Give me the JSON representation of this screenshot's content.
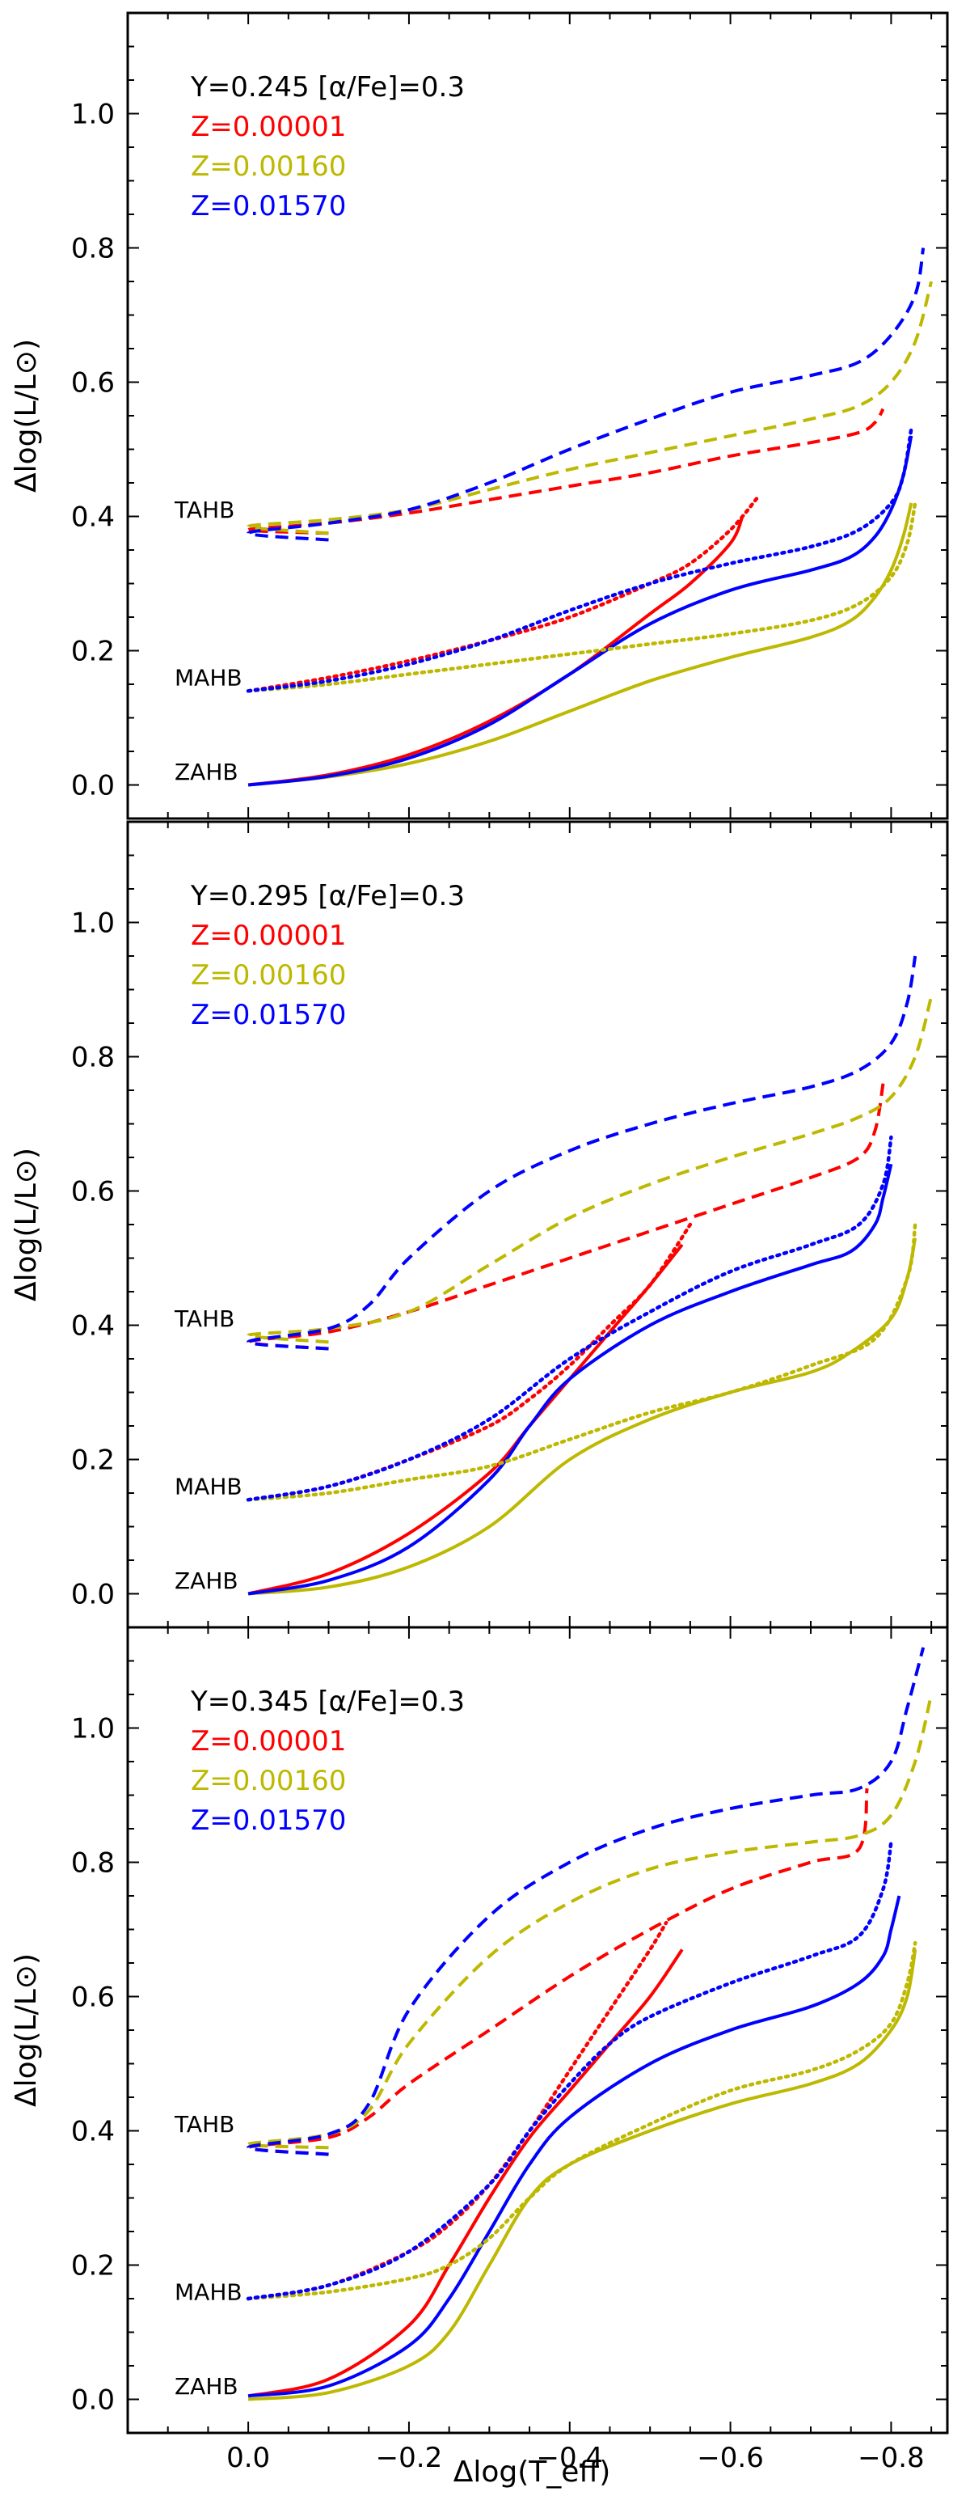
{
  "chart_data": {
    "type": "line",
    "shared_x_label": "Δlog(T_eff)",
    "x_ticks": [
      "0.0",
      "−0.2",
      "−0.4",
      "−0.6",
      "−0.8"
    ],
    "y_ticks": [
      "0.0",
      "0.2",
      "0.4",
      "0.6",
      "0.8",
      "1.0"
    ],
    "ylabel": "Δlog(L/L⊙)",
    "xlim": [
      0.15,
      -0.87
    ],
    "ylim": [
      -0.05,
      1.15
    ],
    "legend_placement": "top-left",
    "line_styles": {
      "ZAHB": "solid",
      "MAHB": "dotted",
      "TAHB": "dashed"
    },
    "colors": {
      "Z=0.00001": "#ff0000",
      "Z=0.00160": "#bdb800",
      "Z=0.01570": "#0000ff"
    },
    "panels": [
      {
        "header": "Y=0.245  [α/Fe]=0.3",
        "legend": [
          "Z=0.00001",
          "Z=0.00160",
          "Z=0.01570"
        ],
        "labels": [
          "TAHB",
          "MAHB",
          "ZAHB"
        ],
        "series": [
          {
            "name": "Z=0.00001",
            "kind": "ZAHB",
            "x": [
              0,
              -0.1,
              -0.2,
              -0.3,
              -0.4,
              -0.5,
              -0.55,
              -0.6,
              -0.615
            ],
            "y": [
              0,
              0.015,
              0.045,
              0.095,
              0.165,
              0.255,
              0.3,
              0.36,
              0.4
            ]
          },
          {
            "name": "Z=0.00160",
            "kind": "ZAHB",
            "x": [
              0,
              -0.1,
              -0.2,
              -0.3,
              -0.4,
              -0.5,
              -0.6,
              -0.7,
              -0.75,
              -0.78,
              -0.8,
              -0.815,
              -0.825
            ],
            "y": [
              0,
              0.012,
              0.032,
              0.065,
              0.11,
              0.155,
              0.19,
              0.22,
              0.245,
              0.28,
              0.32,
              0.37,
              0.42
            ]
          },
          {
            "name": "Z=0.01570",
            "kind": "ZAHB",
            "x": [
              0,
              -0.1,
              -0.2,
              -0.3,
              -0.4,
              -0.5,
              -0.6,
              -0.7,
              -0.75,
              -0.78,
              -0.8,
              -0.815,
              -0.825
            ],
            "y": [
              0,
              0.013,
              0.04,
              0.09,
              0.165,
              0.24,
              0.29,
              0.32,
              0.34,
              0.37,
              0.41,
              0.46,
              0.52
            ]
          },
          {
            "name": "Z=0.00001",
            "kind": "MAHB",
            "x": [
              0,
              -0.1,
              -0.2,
              -0.3,
              -0.4,
              -0.5,
              -0.55,
              -0.6,
              -0.635
            ],
            "y": [
              0.14,
              0.16,
              0.185,
              0.215,
              0.25,
              0.3,
              0.33,
              0.38,
              0.43
            ]
          },
          {
            "name": "Z=0.00160",
            "kind": "MAHB",
            "x": [
              0,
              -0.1,
              -0.2,
              -0.3,
              -0.4,
              -0.5,
              -0.6,
              -0.7,
              -0.76,
              -0.8,
              -0.82,
              -0.83
            ],
            "y": [
              0.14,
              0.15,
              0.165,
              0.18,
              0.195,
              0.21,
              0.225,
              0.245,
              0.27,
              0.31,
              0.36,
              0.42
            ]
          },
          {
            "name": "Z=0.01570",
            "kind": "MAHB",
            "x": [
              0,
              -0.1,
              -0.2,
              -0.3,
              -0.4,
              -0.5,
              -0.6,
              -0.7,
              -0.76,
              -0.8,
              -0.815,
              -0.825
            ],
            "y": [
              0.14,
              0.155,
              0.18,
              0.215,
              0.26,
              0.3,
              0.33,
              0.355,
              0.38,
              0.42,
              0.46,
              0.53
            ]
          },
          {
            "name": "Z=0.00001",
            "kind": "TAHB",
            "x": [
              -0.1,
              0,
              -0.1,
              -0.2,
              -0.3,
              -0.4,
              -0.5,
              -0.6,
              -0.7,
              -0.76,
              -0.78,
              -0.79
            ],
            "y": [
              0.375,
              0.38,
              0.39,
              0.405,
              0.425,
              0.445,
              0.465,
              0.49,
              0.51,
              0.525,
              0.54,
              0.56
            ]
          },
          {
            "name": "Z=0.00160",
            "kind": "TAHB",
            "x": [
              -0.1,
              0,
              -0.1,
              -0.2,
              -0.3,
              -0.4,
              -0.5,
              -0.6,
              -0.7,
              -0.76,
              -0.8,
              -0.83,
              -0.85
            ],
            "y": [
              0.375,
              0.385,
              0.395,
              0.41,
              0.44,
              0.47,
              0.495,
              0.52,
              0.545,
              0.565,
              0.6,
              0.66,
              0.75
            ]
          },
          {
            "name": "Z=0.01570",
            "kind": "TAHB",
            "x": [
              -0.1,
              0,
              -0.1,
              -0.2,
              -0.3,
              -0.4,
              -0.5,
              -0.6,
              -0.7,
              -0.76,
              -0.8,
              -0.83,
              -0.84
            ],
            "y": [
              0.365,
              0.375,
              0.39,
              0.41,
              0.45,
              0.5,
              0.545,
              0.585,
              0.61,
              0.63,
              0.67,
              0.73,
              0.8
            ]
          }
        ]
      },
      {
        "header": "Y=0.295  [α/Fe]=0.3",
        "legend": [
          "Z=0.00001",
          "Z=0.00160",
          "Z=0.01570"
        ],
        "labels": [
          "TAHB",
          "MAHB",
          "ZAHB"
        ],
        "series": [
          {
            "name": "Z=0.00001",
            "kind": "ZAHB",
            "x": [
              0,
              -0.1,
              -0.2,
              -0.3,
              -0.35,
              -0.4,
              -0.45,
              -0.5,
              -0.54
            ],
            "y": [
              0,
              0.03,
              0.09,
              0.18,
              0.25,
              0.32,
              0.39,
              0.46,
              0.52
            ]
          },
          {
            "name": "Z=0.00160",
            "kind": "ZAHB",
            "x": [
              0,
              -0.1,
              -0.2,
              -0.3,
              -0.4,
              -0.5,
              -0.6,
              -0.7,
              -0.75,
              -0.8,
              -0.82,
              -0.83
            ],
            "y": [
              0,
              0.01,
              0.04,
              0.1,
              0.2,
              0.26,
              0.3,
              0.33,
              0.36,
              0.41,
              0.47,
              0.53
            ]
          },
          {
            "name": "Z=0.01570",
            "kind": "ZAHB",
            "x": [
              0,
              -0.1,
              -0.2,
              -0.3,
              -0.35,
              -0.4,
              -0.5,
              -0.6,
              -0.7,
              -0.75,
              -0.78,
              -0.79,
              -0.8
            ],
            "y": [
              0,
              0.02,
              0.07,
              0.17,
              0.25,
              0.32,
              0.4,
              0.45,
              0.49,
              0.51,
              0.55,
              0.59,
              0.64
            ]
          },
          {
            "name": "Z=0.00001",
            "kind": "MAHB",
            "x": [
              0,
              -0.1,
              -0.2,
              -0.3,
              -0.35,
              -0.4,
              -0.45,
              -0.5,
              -0.55
            ],
            "y": [
              0.14,
              0.16,
              0.2,
              0.25,
              0.29,
              0.34,
              0.4,
              0.46,
              0.55
            ]
          },
          {
            "name": "Z=0.00160",
            "kind": "MAHB",
            "x": [
              0,
              -0.1,
              -0.2,
              -0.3,
              -0.4,
              -0.5,
              -0.6,
              -0.7,
              -0.78,
              -0.82,
              -0.83
            ],
            "y": [
              0.14,
              0.15,
              0.17,
              0.19,
              0.23,
              0.27,
              0.3,
              0.34,
              0.38,
              0.47,
              0.55
            ]
          },
          {
            "name": "Z=0.01570",
            "kind": "MAHB",
            "x": [
              0,
              -0.1,
              -0.2,
              -0.3,
              -0.4,
              -0.5,
              -0.6,
              -0.7,
              -0.76,
              -0.79,
              -0.8
            ],
            "y": [
              0.14,
              0.16,
              0.2,
              0.26,
              0.35,
              0.42,
              0.48,
              0.52,
              0.55,
              0.61,
              0.68
            ]
          },
          {
            "name": "Z=0.00001",
            "kind": "TAHB",
            "x": [
              -0.1,
              0,
              -0.1,
              -0.2,
              -0.3,
              -0.4,
              -0.5,
              -0.6,
              -0.7,
              -0.76,
              -0.78,
              -0.79
            ],
            "y": [
              0.365,
              0.375,
              0.39,
              0.42,
              0.46,
              0.5,
              0.54,
              0.58,
              0.62,
              0.65,
              0.69,
              0.76
            ]
          },
          {
            "name": "Z=0.00160",
            "kind": "TAHB",
            "x": [
              -0.1,
              0,
              -0.1,
              -0.2,
              -0.3,
              -0.4,
              -0.5,
              -0.6,
              -0.7,
              -0.76,
              -0.8,
              -0.83,
              -0.85
            ],
            "y": [
              0.375,
              0.385,
              0.395,
              0.42,
              0.49,
              0.56,
              0.61,
              0.65,
              0.685,
              0.71,
              0.74,
              0.8,
              0.89
            ]
          },
          {
            "name": "Z=0.01570",
            "kind": "TAHB",
            "x": [
              -0.1,
              0,
              -0.1,
              -0.15,
              -0.2,
              -0.3,
              -0.4,
              -0.5,
              -0.6,
              -0.7,
              -0.76,
              -0.8,
              -0.82,
              -0.83
            ],
            "y": [
              0.365,
              0.375,
              0.395,
              0.43,
              0.5,
              0.6,
              0.66,
              0.7,
              0.73,
              0.755,
              0.78,
              0.82,
              0.88,
              0.95
            ]
          }
        ]
      },
      {
        "header": "Y=0.345  [α/Fe]=0.3",
        "legend": [
          "Z=0.00001",
          "Z=0.00160",
          "Z=0.01570"
        ],
        "labels": [
          "TAHB",
          "MAHB",
          "ZAHB"
        ],
        "series": [
          {
            "name": "Z=0.00001",
            "kind": "ZAHB",
            "x": [
              0,
              -0.1,
              -0.2,
              -0.25,
              -0.3,
              -0.35,
              -0.4,
              -0.45,
              -0.5,
              -0.54
            ],
            "y": [
              0.005,
              0.03,
              0.11,
              0.2,
              0.3,
              0.39,
              0.46,
              0.53,
              0.6,
              0.67
            ]
          },
          {
            "name": "Z=0.00160",
            "kind": "ZAHB",
            "x": [
              0,
              -0.1,
              -0.2,
              -0.25,
              -0.3,
              -0.35,
              -0.4,
              -0.5,
              -0.6,
              -0.7,
              -0.76,
              -0.8,
              -0.82,
              -0.83
            ],
            "y": [
              0,
              0.01,
              0.05,
              0.1,
              0.2,
              0.3,
              0.35,
              0.4,
              0.44,
              0.47,
              0.5,
              0.55,
              0.6,
              0.67
            ]
          },
          {
            "name": "Z=0.01570",
            "kind": "ZAHB",
            "x": [
              0,
              -0.1,
              -0.2,
              -0.25,
              -0.3,
              -0.35,
              -0.4,
              -0.5,
              -0.6,
              -0.7,
              -0.76,
              -0.79,
              -0.8,
              -0.81
            ],
            "y": [
              0.005,
              0.02,
              0.08,
              0.15,
              0.25,
              0.35,
              0.42,
              0.5,
              0.55,
              0.585,
              0.62,
              0.66,
              0.7,
              0.75
            ]
          },
          {
            "name": "Z=0.00001",
            "kind": "MAHB",
            "x": [
              0,
              -0.1,
              -0.2,
              -0.25,
              -0.3,
              -0.35,
              -0.4,
              -0.45,
              -0.5,
              -0.52
            ],
            "y": [
              0.15,
              0.17,
              0.22,
              0.26,
              0.32,
              0.4,
              0.49,
              0.58,
              0.67,
              0.71
            ]
          },
          {
            "name": "Z=0.00160",
            "kind": "MAHB",
            "x": [
              0,
              -0.1,
              -0.2,
              -0.25,
              -0.3,
              -0.35,
              -0.4,
              -0.5,
              -0.6,
              -0.7,
              -0.76,
              -0.8,
              -0.82,
              -0.83
            ],
            "y": [
              0.15,
              0.16,
              0.18,
              0.2,
              0.24,
              0.3,
              0.35,
              0.41,
              0.46,
              0.49,
              0.52,
              0.56,
              0.62,
              0.68
            ]
          },
          {
            "name": "Z=0.01570",
            "kind": "MAHB",
            "x": [
              0,
              -0.1,
              -0.2,
              -0.3,
              -0.35,
              -0.4,
              -0.45,
              -0.5,
              -0.6,
              -0.7,
              -0.76,
              -0.79,
              -0.8
            ],
            "y": [
              0.15,
              0.17,
              0.22,
              0.32,
              0.4,
              0.47,
              0.53,
              0.57,
              0.62,
              0.66,
              0.69,
              0.76,
              0.83
            ]
          },
          {
            "name": "Z=0.00001",
            "kind": "TAHB",
            "x": [
              -0.1,
              0,
              -0.1,
              -0.15,
              -0.2,
              -0.3,
              -0.4,
              -0.5,
              -0.6,
              -0.7,
              -0.76,
              -0.77
            ],
            "y": [
              0.365,
              0.375,
              0.39,
              0.42,
              0.47,
              0.55,
              0.63,
              0.7,
              0.76,
              0.8,
              0.82,
              0.91
            ]
          },
          {
            "name": "Z=0.00160",
            "kind": "TAHB",
            "x": [
              -0.1,
              0,
              -0.1,
              -0.15,
              -0.2,
              -0.3,
              -0.4,
              -0.5,
              -0.6,
              -0.7,
              -0.76,
              -0.8,
              -0.83,
              -0.85
            ],
            "y": [
              0.375,
              0.38,
              0.395,
              0.43,
              0.53,
              0.66,
              0.74,
              0.79,
              0.815,
              0.83,
              0.84,
              0.87,
              0.95,
              1.05
            ]
          },
          {
            "name": "Z=0.01570",
            "kind": "TAHB",
            "x": [
              -0.1,
              0,
              -0.1,
              -0.15,
              -0.2,
              -0.3,
              -0.4,
              -0.5,
              -0.6,
              -0.7,
              -0.76,
              -0.8,
              -0.82,
              -0.84
            ],
            "y": [
              0.365,
              0.375,
              0.395,
              0.44,
              0.58,
              0.72,
              0.8,
              0.85,
              0.88,
              0.9,
              0.91,
              0.95,
              1.03,
              1.12
            ]
          }
        ]
      }
    ]
  }
}
